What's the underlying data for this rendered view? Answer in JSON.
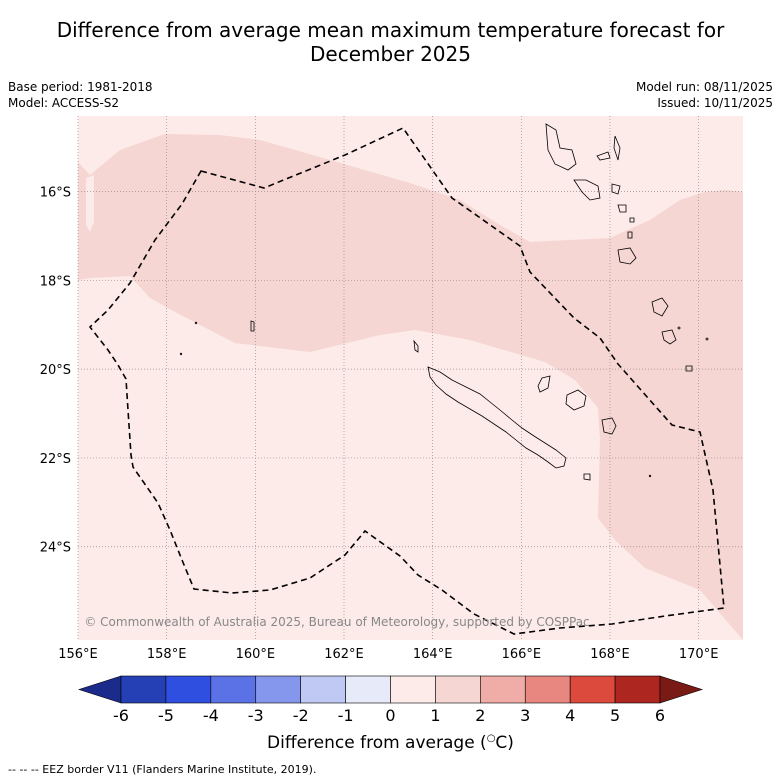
{
  "title_line1": "Difference from average mean maximum temperature forecast for",
  "title_line2": "December 2025",
  "meta": {
    "base_period": "Base period: 1981-2018",
    "model": "Model: ACCESS-S2",
    "model_run": "Model run: 08/11/2025",
    "issued": "Issued: 10/11/2025"
  },
  "map": {
    "lon_range": [
      156,
      171
    ],
    "lat_range": [
      -26.1,
      -14.3
    ],
    "lon_ticks": [
      156,
      158,
      160,
      162,
      164,
      166,
      168,
      170
    ],
    "lon_labels": [
      "156°E",
      "158°E",
      "160°E",
      "162°E",
      "164°E",
      "166°E",
      "168°E",
      "170°E"
    ],
    "lat_ticks": [
      -16,
      -18,
      -20,
      -22,
      -24
    ],
    "lat_labels": [
      "16°S",
      "18°S",
      "20°S",
      "22°S",
      "24°S"
    ],
    "background_color": "#fcebe9",
    "anomaly_color": "#f5d6d3",
    "copyright": "© Commonwealth of Australia 2025, Bureau of Meteorology, supported by COSPPac"
  },
  "colorbar": {
    "ticks": [
      "-6",
      "-5",
      "-4",
      "-3",
      "-2",
      "-1",
      "0",
      "1",
      "2",
      "3",
      "4",
      "5",
      "6"
    ],
    "colors": [
      "#1b2b8c",
      "#2540b4",
      "#2f4fe0",
      "#5a72e6",
      "#8597ec",
      "#c0c8f4",
      "#e6eaf9",
      "#fcebe9",
      "#f5d6d3",
      "#f0aca6",
      "#e8877f",
      "#dc4a3e",
      "#ad2620",
      "#7a1a14"
    ],
    "label": "Difference from average (",
    "label_unit": "C)"
  },
  "footnote": "-- -- -- EEZ border V11 (Flanders Marine Institute, 2019)."
}
